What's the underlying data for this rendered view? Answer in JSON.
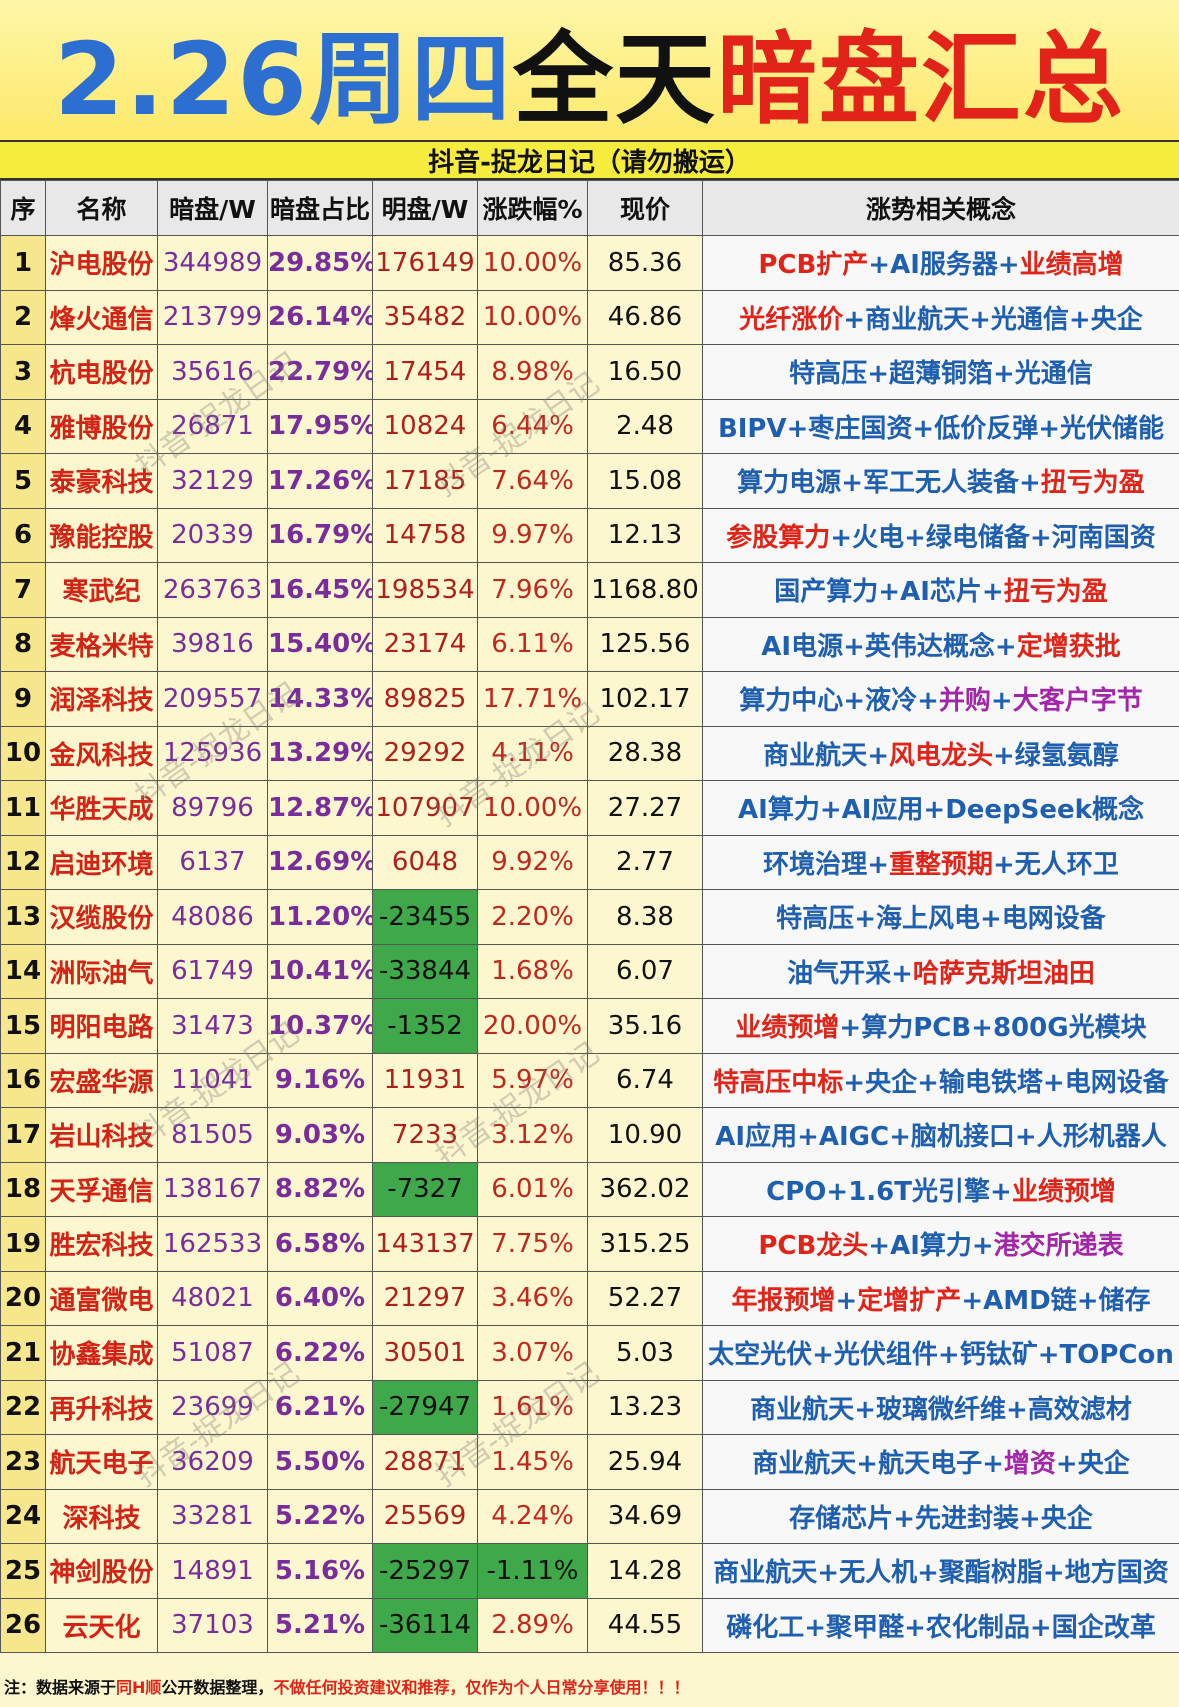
{
  "title": {
    "date": "2.26周四",
    "mid": "全天",
    "red": "暗盘汇总"
  },
  "subtitle": "抖音-捉龙日记（请勿搬运）",
  "headers": [
    "序",
    "名称",
    "暗盘/W",
    "暗盘占比",
    "明盘/W",
    "涨跌幅%",
    "现价",
    "涨势相关概念"
  ],
  "rows": [
    {
      "no": "1",
      "name": "沪电股份",
      "dark": "344989",
      "ratio": "29.85%",
      "bright": "176149",
      "chg": "10.00%",
      "price": "85.36",
      "concepts": [
        [
          "PCB扩产",
          "red"
        ],
        [
          "AI服务器",
          "blue"
        ],
        [
          "业绩高增",
          "red"
        ]
      ]
    },
    {
      "no": "2",
      "name": "烽火通信",
      "dark": "213799",
      "ratio": "26.14%",
      "bright": "35482",
      "chg": "10.00%",
      "price": "46.86",
      "concepts": [
        [
          "光纤涨价",
          "red"
        ],
        [
          "商业航天",
          "blue"
        ],
        [
          "光通信",
          "blue"
        ],
        [
          "央企",
          "blue"
        ]
      ]
    },
    {
      "no": "3",
      "name": "杭电股份",
      "dark": "35616",
      "ratio": "22.79%",
      "bright": "17454",
      "chg": "8.98%",
      "price": "16.50",
      "concepts": [
        [
          "特高压",
          "blue"
        ],
        [
          "超薄铜箔",
          "blue"
        ],
        [
          "光通信",
          "blue"
        ]
      ]
    },
    {
      "no": "4",
      "name": "雅博股份",
      "dark": "26871",
      "ratio": "17.95%",
      "bright": "10824",
      "chg": "6.44%",
      "price": "2.48",
      "concepts": [
        [
          "BIPV",
          "blue"
        ],
        [
          "枣庄国资",
          "blue"
        ],
        [
          "低价反弹",
          "blue"
        ],
        [
          "光伏储能",
          "blue"
        ]
      ]
    },
    {
      "no": "5",
      "name": "泰豪科技",
      "dark": "32129",
      "ratio": "17.26%",
      "bright": "17185",
      "chg": "7.64%",
      "price": "15.08",
      "concepts": [
        [
          "算力电源",
          "blue"
        ],
        [
          "军工无人装备",
          "blue"
        ],
        [
          "扭亏为盈",
          "red"
        ]
      ]
    },
    {
      "no": "6",
      "name": "豫能控股",
      "dark": "20339",
      "ratio": "16.79%",
      "bright": "14758",
      "chg": "9.97%",
      "price": "12.13",
      "concepts": [
        [
          "参股算力",
          "red"
        ],
        [
          "火电",
          "blue"
        ],
        [
          "绿电储备",
          "blue"
        ],
        [
          "河南国资",
          "blue"
        ]
      ]
    },
    {
      "no": "7",
      "name": "寒武纪",
      "dark": "263763",
      "ratio": "16.45%",
      "bright": "198534",
      "chg": "7.96%",
      "price": "1168.80",
      "concepts": [
        [
          "国产算力",
          "blue"
        ],
        [
          "AI芯片",
          "blue"
        ],
        [
          "扭亏为盈",
          "red"
        ]
      ]
    },
    {
      "no": "8",
      "name": "麦格米特",
      "dark": "39816",
      "ratio": "15.40%",
      "bright": "23174",
      "chg": "6.11%",
      "price": "125.56",
      "concepts": [
        [
          "AI电源",
          "blue"
        ],
        [
          "英伟达概念",
          "blue"
        ],
        [
          "定增获批",
          "red"
        ]
      ]
    },
    {
      "no": "9",
      "name": "润泽科技",
      "dark": "209557",
      "ratio": "14.33%",
      "bright": "89825",
      "chg": "17.71%",
      "price": "102.17",
      "concepts": [
        [
          "算力中心",
          "blue"
        ],
        [
          "液冷",
          "blue"
        ],
        [
          "并购",
          "purple"
        ],
        [
          "大客户字节",
          "purple"
        ]
      ]
    },
    {
      "no": "10",
      "name": "金风科技",
      "dark": "125936",
      "ratio": "13.29%",
      "bright": "29292",
      "chg": "4.11%",
      "price": "28.38",
      "concepts": [
        [
          "商业航天",
          "blue"
        ],
        [
          "风电龙头",
          "red"
        ],
        [
          "绿氢氨醇",
          "blue"
        ]
      ]
    },
    {
      "no": "11",
      "name": "华胜天成",
      "dark": "89796",
      "ratio": "12.87%",
      "bright": "107907",
      "chg": "10.00%",
      "price": "27.27",
      "concepts": [
        [
          "AI算力",
          "blue"
        ],
        [
          "AI应用",
          "blue"
        ],
        [
          "DeepSeek概念",
          "blue"
        ]
      ]
    },
    {
      "no": "12",
      "name": "启迪环境",
      "dark": "6137",
      "ratio": "12.69%",
      "bright": "6048",
      "chg": "9.92%",
      "price": "2.77",
      "concepts": [
        [
          "环境治理",
          "blue"
        ],
        [
          "重整预期",
          "red"
        ],
        [
          "无人环卫",
          "blue"
        ]
      ]
    },
    {
      "no": "13",
      "name": "汉缆股份",
      "dark": "48086",
      "ratio": "11.20%",
      "bright": "-23455",
      "chg": "2.20%",
      "price": "8.38",
      "concepts": [
        [
          "特高压",
          "blue"
        ],
        [
          "海上风电",
          "blue"
        ],
        [
          "电网设备",
          "blue"
        ]
      ]
    },
    {
      "no": "14",
      "name": "洲际油气",
      "dark": "61749",
      "ratio": "10.41%",
      "bright": "-33844",
      "chg": "1.68%",
      "price": "6.07",
      "concepts": [
        [
          "油气开采",
          "blue"
        ],
        [
          "哈萨克斯坦油田",
          "red"
        ]
      ]
    },
    {
      "no": "15",
      "name": "明阳电路",
      "dark": "31473",
      "ratio": "10.37%",
      "bright": "-1352",
      "chg": "20.00%",
      "price": "35.16",
      "concepts": [
        [
          "业绩预增",
          "red"
        ],
        [
          "算力PCB",
          "blue"
        ],
        [
          "800G光模块",
          "blue"
        ]
      ]
    },
    {
      "no": "16",
      "name": "宏盛华源",
      "dark": "11041",
      "ratio": "9.16%",
      "bright": "11931",
      "chg": "5.97%",
      "price": "6.74",
      "concepts": [
        [
          "特高压中标",
          "red"
        ],
        [
          "央企",
          "blue"
        ],
        [
          "输电铁塔",
          "blue"
        ],
        [
          "电网设备",
          "blue"
        ]
      ]
    },
    {
      "no": "17",
      "name": "岩山科技",
      "dark": "81505",
      "ratio": "9.03%",
      "bright": "7233",
      "chg": "3.12%",
      "price": "10.90",
      "concepts": [
        [
          "AI应用",
          "blue"
        ],
        [
          "AIGC",
          "blue"
        ],
        [
          "脑机接口",
          "blue"
        ],
        [
          "人形机器人",
          "blue"
        ]
      ]
    },
    {
      "no": "18",
      "name": "天孚通信",
      "dark": "138167",
      "ratio": "8.82%",
      "bright": "-7327",
      "chg": "6.01%",
      "price": "362.02",
      "concepts": [
        [
          "CPO",
          "blue"
        ],
        [
          "1.6T光引擎",
          "blue"
        ],
        [
          "业绩预增",
          "red"
        ]
      ]
    },
    {
      "no": "19",
      "name": "胜宏科技",
      "dark": "162533",
      "ratio": "6.58%",
      "bright": "143137",
      "chg": "7.75%",
      "price": "315.25",
      "concepts": [
        [
          "PCB龙头",
          "red"
        ],
        [
          "AI算力",
          "blue"
        ],
        [
          "港交所递表",
          "purple"
        ]
      ]
    },
    {
      "no": "20",
      "name": "通富微电",
      "dark": "48021",
      "ratio": "6.40%",
      "bright": "21297",
      "chg": "3.46%",
      "price": "52.27",
      "concepts": [
        [
          "年报预增",
          "red"
        ],
        [
          "定增扩产",
          "red"
        ],
        [
          "AMD链",
          "blue"
        ],
        [
          "储存",
          "blue"
        ]
      ]
    },
    {
      "no": "21",
      "name": "协鑫集成",
      "dark": "51087",
      "ratio": "6.22%",
      "bright": "30501",
      "chg": "3.07%",
      "price": "5.03",
      "concepts": [
        [
          "太空光伏",
          "blue"
        ],
        [
          "光伏组件",
          "blue"
        ],
        [
          "钙钛矿",
          "blue"
        ],
        [
          "TOPCon",
          "blue"
        ]
      ]
    },
    {
      "no": "22",
      "name": "再升科技",
      "dark": "23699",
      "ratio": "6.21%",
      "bright": "-27947",
      "chg": "1.61%",
      "price": "13.23",
      "concepts": [
        [
          "商业航天",
          "blue"
        ],
        [
          "玻璃微纤维",
          "blue"
        ],
        [
          "高效滤材",
          "blue"
        ]
      ]
    },
    {
      "no": "23",
      "name": "航天电子",
      "dark": "36209",
      "ratio": "5.50%",
      "bright": "28871",
      "chg": "1.45%",
      "price": "25.94",
      "concepts": [
        [
          "商业航天",
          "blue"
        ],
        [
          "航天电子",
          "blue"
        ],
        [
          "增资",
          "purple"
        ],
        [
          "央企",
          "blue"
        ]
      ]
    },
    {
      "no": "24",
      "name": "深科技",
      "dark": "33281",
      "ratio": "5.22%",
      "bright": "25569",
      "chg": "4.24%",
      "price": "34.69",
      "concepts": [
        [
          "存储芯片",
          "blue"
        ],
        [
          "先进封装",
          "blue"
        ],
        [
          "央企",
          "blue"
        ]
      ]
    },
    {
      "no": "25",
      "name": "神剑股份",
      "dark": "14891",
      "ratio": "5.16%",
      "bright": "-25297",
      "chg": "-1.11%",
      "price": "14.28",
      "concepts": [
        [
          "商业航天",
          "blue"
        ],
        [
          "无人机",
          "blue"
        ],
        [
          "聚酯树脂",
          "blue"
        ],
        [
          "地方国资",
          "blue"
        ]
      ]
    },
    {
      "no": "26",
      "name": "云天化",
      "dark": "37103",
      "ratio": "5.21%",
      "bright": "-36114",
      "chg": "2.89%",
      "price": "44.55",
      "concepts": [
        [
          "磷化工",
          "blue"
        ],
        [
          "聚甲醛",
          "blue"
        ],
        [
          "农化制品",
          "blue"
        ],
        [
          "国企改革",
          "blue"
        ]
      ]
    }
  ],
  "footer": {
    "prefix": "注：数据来源于",
    "source": "同H顺",
    "mid": "公开数据整理，",
    "warning": "不做任何投资建议和推荐，仅作为个人日常分享使用！！！"
  },
  "watermark": "抖音-捉龙日记",
  "colors": {
    "red": "#e02418",
    "blue": "#1f5fb0",
    "purple": "#a326a8",
    "negative_bg": "#3fa84a",
    "title_blue": "#2c6fd0"
  }
}
